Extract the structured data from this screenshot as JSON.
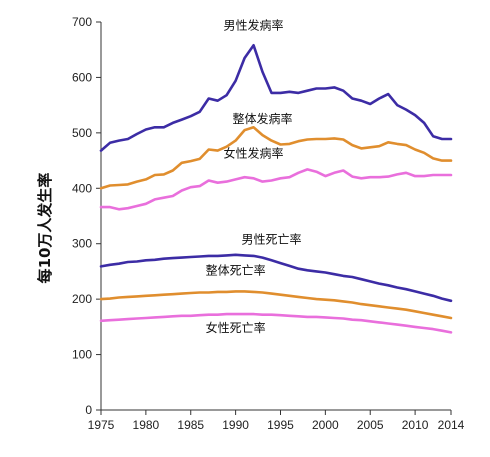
{
  "chart_data": {
    "type": "line",
    "xlabel": "",
    "ylabel": "每10万人发生率",
    "xlim": [
      1975,
      2014
    ],
    "ylim": [
      0,
      700
    ],
    "x_ticks": [
      1975,
      1980,
      1985,
      1990,
      1995,
      2000,
      2005,
      2010,
      2014
    ],
    "y_ticks": [
      0,
      100,
      200,
      300,
      400,
      500,
      600,
      700
    ],
    "grid": false,
    "legend": "inline labels",
    "x": [
      1975,
      1976,
      1977,
      1978,
      1979,
      1980,
      1981,
      1982,
      1983,
      1984,
      1985,
      1986,
      1987,
      1988,
      1989,
      1990,
      1991,
      1992,
      1993,
      1994,
      1995,
      1996,
      1997,
      1998,
      1999,
      2000,
      2001,
      2002,
      2003,
      2004,
      2005,
      2006,
      2007,
      2008,
      2009,
      2010,
      2011,
      2012,
      2013,
      2014
    ],
    "series": [
      {
        "name": "男性发病率",
        "color": "#3c2ca5",
        "values": [
          468,
          482,
          486,
          489,
          498,
          506,
          510,
          510,
          518,
          524,
          530,
          538,
          562,
          558,
          568,
          594,
          635,
          658,
          610,
          572,
          572,
          574,
          572,
          576,
          580,
          580,
          582,
          576,
          562,
          558,
          552,
          562,
          570,
          550,
          542,
          532,
          518,
          494,
          489,
          489
        ]
      },
      {
        "name": "整体发病率",
        "color": "#e08e2e",
        "values": [
          400,
          405,
          406,
          407,
          412,
          416,
          424,
          425,
          432,
          446,
          449,
          453,
          470,
          468,
          475,
          486,
          505,
          510,
          496,
          486,
          479,
          480,
          485,
          488,
          489,
          489,
          490,
          488,
          478,
          472,
          474,
          476,
          483,
          480,
          478,
          470,
          464,
          454,
          450,
          450
        ]
      },
      {
        "name": "女性发病率",
        "color": "#e96fdc",
        "values": [
          366,
          366,
          362,
          364,
          368,
          372,
          380,
          383,
          386,
          396,
          402,
          404,
          414,
          410,
          412,
          416,
          420,
          418,
          412,
          414,
          418,
          420,
          428,
          434,
          430,
          422,
          428,
          432,
          421,
          418,
          420,
          420,
          421,
          425,
          428,
          422,
          422,
          424,
          424,
          424
        ]
      },
      {
        "name": "男性死亡率",
        "color": "#3c2ca5",
        "values": [
          259,
          262,
          264,
          267,
          268,
          270,
          271,
          273,
          274,
          275,
          276,
          277,
          278,
          278,
          279,
          280,
          279,
          278,
          275,
          270,
          265,
          260,
          255,
          252,
          250,
          248,
          245,
          242,
          240,
          236,
          232,
          228,
          225,
          221,
          218,
          214,
          210,
          206,
          201,
          197
        ]
      },
      {
        "name": "整体死亡率",
        "color": "#e08e2e",
        "values": [
          200,
          201,
          203,
          204,
          205,
          206,
          207,
          208,
          209,
          210,
          211,
          212,
          212,
          213,
          213,
          214,
          214,
          213,
          212,
          210,
          208,
          206,
          204,
          202,
          200,
          199,
          198,
          196,
          194,
          191,
          189,
          187,
          185,
          183,
          181,
          178,
          175,
          172,
          169,
          166
        ]
      },
      {
        "name": "女性死亡率",
        "color": "#e96fdc",
        "values": [
          161,
          162,
          163,
          164,
          165,
          166,
          167,
          168,
          169,
          170,
          170,
          171,
          172,
          172,
          173,
          173,
          173,
          173,
          172,
          172,
          171,
          170,
          169,
          168,
          168,
          167,
          166,
          165,
          163,
          162,
          160,
          158,
          156,
          154,
          152,
          150,
          148,
          146,
          143,
          140
        ]
      }
    ]
  }
}
